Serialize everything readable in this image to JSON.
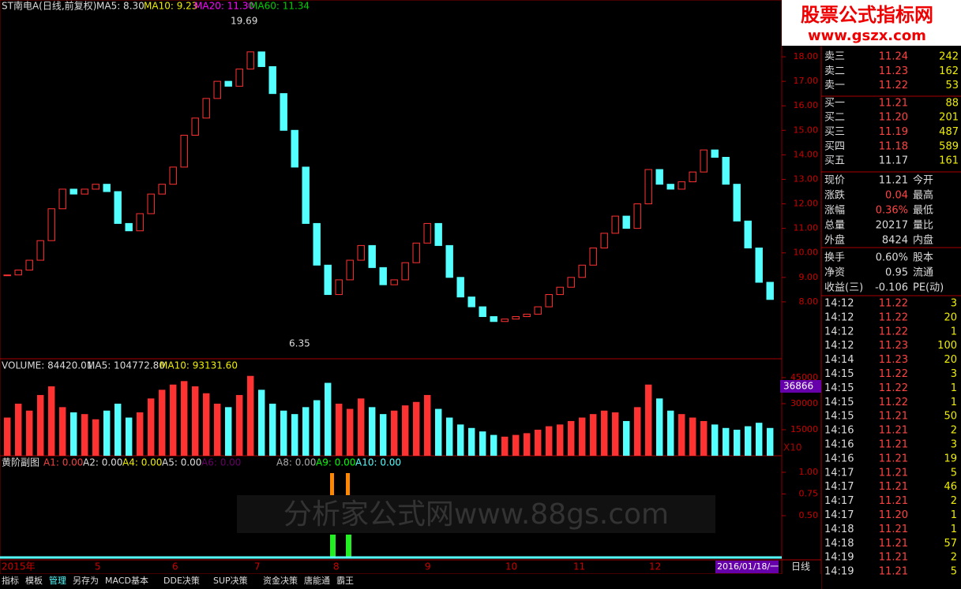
{
  "header": {
    "title": "ST南电A(日线,前复权)",
    "ma5": "MA5: 8.30",
    "ma10": "MA10: 9.23",
    "ma20": "MA20: 11.30",
    "ma60": "MA60: 11.34",
    "high_label": "19.69",
    "low_label": "6.35"
  },
  "watermark_top": {
    "title": "股票公式指标网",
    "url": "www.gszx.com"
  },
  "price_chart": {
    "type": "candlestick",
    "ylim": [
      5.68,
      20.06
    ],
    "yticks": [
      {
        "value": 8,
        "label": "8.00"
      },
      {
        "value": 9,
        "label": "9.00"
      },
      {
        "value": 10,
        "label": "10.00"
      },
      {
        "value": 11,
        "label": "11.00"
      },
      {
        "value": 12,
        "label": "12.00"
      },
      {
        "value": 13,
        "label": "13.00"
      },
      {
        "value": 14,
        "label": "14.00"
      },
      {
        "value": 15,
        "label": "15.00"
      },
      {
        "value": 16,
        "label": "16.00"
      },
      {
        "value": 17,
        "label": "17.00"
      },
      {
        "value": 18,
        "label": "18.00"
      }
    ],
    "values": [
      9.1,
      9.3,
      9.7,
      10.5,
      11.8,
      12.6,
      12.4,
      12.6,
      12.8,
      12.5,
      11.2,
      10.9,
      11.6,
      12.4,
      12.8,
      13.5,
      14.8,
      15.5,
      16.3,
      17.0,
      16.8,
      17.5,
      18.2,
      17.6,
      16.5,
      15.0,
      13.5,
      11.2,
      9.5,
      8.3,
      8.9,
      9.7,
      10.3,
      9.4,
      8.7,
      8.9,
      9.6,
      10.4,
      11.2,
      10.3,
      9.0,
      8.2,
      7.8,
      7.4,
      7.2,
      7.3,
      7.4,
      7.5,
      7.8,
      8.3,
      8.6,
      9.0,
      9.5,
      10.2,
      10.8,
      11.5,
      11.0,
      12.0,
      13.4,
      12.8,
      12.6,
      12.9,
      13.3,
      14.2,
      13.9,
      12.8,
      11.3,
      10.2,
      8.8,
      8.1
    ]
  },
  "volume_chart": {
    "type": "bar",
    "header": "VOLUME: 84420.01",
    "ma5": "MA5: 104772.80",
    "ma10": "MA10: 93131.60",
    "current": "36866",
    "scale": "X10",
    "ylim": [
      0,
      53600
    ],
    "yticks": [
      15000,
      30000,
      45000
    ],
    "values": [
      22000,
      30000,
      26000,
      35000,
      40000,
      28000,
      25000,
      24000,
      21000,
      26000,
      30000,
      22000,
      25000,
      33000,
      38000,
      41000,
      43000,
      40000,
      36000,
      30000,
      28000,
      35000,
      46000,
      38000,
      30000,
      26000,
      24000,
      28000,
      32000,
      42000,
      30000,
      27000,
      33000,
      28000,
      24000,
      26000,
      29000,
      31000,
      35000,
      27000,
      22000,
      18000,
      16000,
      14000,
      12000,
      11000,
      12000,
      13000,
      15000,
      17000,
      18000,
      20000,
      22000,
      24000,
      26000,
      25000,
      20000,
      28000,
      41000,
      33000,
      26000,
      24000,
      22000,
      20000,
      18000,
      16000,
      15000,
      17000,
      19000,
      16000
    ]
  },
  "indicator": {
    "title": "黄阶副图",
    "labels": [
      "A1: 0.00",
      "A2: 0.00",
      "A4: 0.00",
      "A5: 0.00",
      "A6: 0.00",
      "A8: 0.00",
      "A9: 0.00",
      "A10: 0.00"
    ],
    "ylim": [
      0,
      1.127
    ],
    "yticks": [
      {
        "value": 0.5,
        "label": "0.50"
      },
      {
        "value": 0.75,
        "label": "0.75"
      },
      {
        "value": 1,
        "label": "1.00"
      }
    ],
    "watermark": "分析家公式网www.88gs.com"
  },
  "date_axis": [
    "2015年",
    "5",
    "6",
    "7",
    "8",
    "9",
    "10",
    "11",
    "12"
  ],
  "current_date": "2016/01/18/一",
  "period": "日线",
  "tabs": [
    "指标",
    "模板",
    "管理",
    "另存为",
    "MACD基本",
    "DDE决策",
    "SUP决策",
    "资金决策",
    "唐能通",
    "霸王"
  ],
  "order_book": [
    [
      "卖三",
      "11.24",
      "242"
    ],
    [
      "卖二",
      "11.23",
      "162"
    ],
    [
      "卖一",
      "11.22",
      "53"
    ],
    [
      "买一",
      "11.21",
      "88"
    ],
    [
      "买二",
      "11.20",
      "201"
    ],
    [
      "买三",
      "11.19",
      "487"
    ],
    [
      "买四",
      "11.18",
      "589"
    ],
    [
      "买五",
      "11.17",
      "161"
    ]
  ],
  "stats": [
    [
      "现价",
      "11.21",
      "今开"
    ],
    [
      "涨跌",
      "0.04",
      "最高"
    ],
    [
      "涨幅",
      "0.36%",
      "最低"
    ],
    [
      "总量",
      "20217",
      "量比"
    ],
    [
      "外盘",
      "8424",
      "内盘"
    ],
    [
      "换手",
      "0.60%",
      "股本"
    ],
    [
      "净资",
      "0.95",
      "流通"
    ],
    [
      "收益(三)",
      "-0.106",
      "PE(动)"
    ]
  ],
  "trades": [
    [
      "14:12",
      "11.22",
      "3"
    ],
    [
      "14:12",
      "11.22",
      "20"
    ],
    [
      "14:12",
      "11.22",
      "1"
    ],
    [
      "14:12",
      "11.23",
      "100"
    ],
    [
      "14:14",
      "11.23",
      "20"
    ],
    [
      "14:15",
      "11.22",
      "3"
    ],
    [
      "14:15",
      "11.22",
      "1"
    ],
    [
      "14:15",
      "11.22",
      "1"
    ],
    [
      "14:15",
      "11.21",
      "50"
    ],
    [
      "14:16",
      "11.21",
      "2"
    ],
    [
      "14:16",
      "11.21",
      "3"
    ],
    [
      "14:16",
      "11.21",
      "19"
    ],
    [
      "14:17",
      "11.21",
      "5"
    ],
    [
      "14:17",
      "11.21",
      "46"
    ],
    [
      "14:17",
      "11.21",
      "2"
    ],
    [
      "14:17",
      "11.20",
      "1"
    ],
    [
      "14:18",
      "11.21",
      "1"
    ],
    [
      "14:18",
      "11.21",
      "57"
    ],
    [
      "14:19",
      "11.21",
      "2"
    ],
    [
      "14:19",
      "11.21",
      "5"
    ]
  ]
}
